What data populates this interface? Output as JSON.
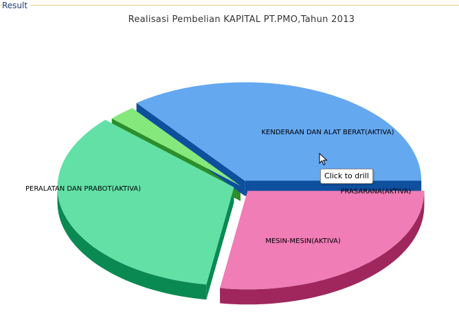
{
  "panel": {
    "title": "Result"
  },
  "tooltip": {
    "text": "Click to drill"
  },
  "chart_data": {
    "type": "pie",
    "style": "3d-exploded",
    "title": "Realisasi Pembelian KAPITAL PT.PMO,Tahun 2013",
    "slices": [
      {
        "label": "KENDERAAN DAN ALAT BERAT(AKTIVA)",
        "value": 35.5,
        "color": "#64a8f0",
        "side_color": "#0e4f9e"
      },
      {
        "label": "PRASARANA(AKTIVA)",
        "value": 2.5,
        "color": "#84e87c",
        "side_color": "#2b8f2b"
      },
      {
        "label": "MESIN-MESIN(AKTIVA)",
        "value": 34.5,
        "color": "#62e0a6",
        "side_color": "#0a8a52"
      },
      {
        "label": "PERALATAN DAN PRABOT(AKTIVA)",
        "value": 27.5,
        "color": "#f07db6",
        "side_color": "#a0275e"
      }
    ],
    "hover_tooltip": "Click to drill"
  }
}
